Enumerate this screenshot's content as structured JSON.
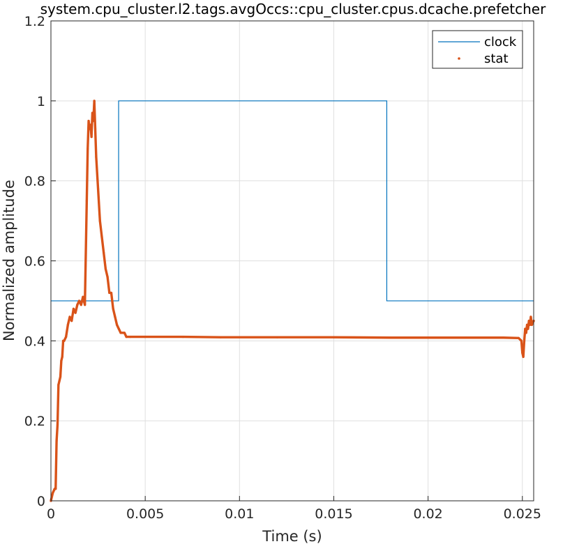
{
  "chart_data": {
    "type": "line",
    "title": "system.cpu_cluster.l2.tags.avgOccs::cpu_cluster.cpus.dcache.prefetcher",
    "xlabel": "Time (s)",
    "ylabel": "Normalized amplitude",
    "xlim": [
      0,
      0.0256
    ],
    "ylim": [
      0,
      1.2
    ],
    "xticks": [
      0,
      0.005,
      0.01,
      0.015,
      0.02,
      0.025
    ],
    "xtick_labels": [
      "0",
      "0.005",
      "0.01",
      "0.015",
      "0.02",
      "0.025"
    ],
    "yticks": [
      0,
      0.2,
      0.4,
      0.6,
      0.8,
      1.0,
      1.2
    ],
    "ytick_labels": [
      "0",
      "0.2",
      "0.4",
      "0.6",
      "0.8",
      "1",
      "1.2"
    ],
    "grid": true,
    "legend_position": "top-right",
    "series": [
      {
        "name": "clock",
        "color": "#0072bd",
        "style": "line",
        "x": [
          0,
          0.00359,
          0.00359,
          0.01781,
          0.01781,
          0.0256
        ],
        "y": [
          0.5,
          0.5,
          1.0,
          1.0,
          0.5,
          0.5
        ]
      },
      {
        "name": "stat",
        "color": "#d95319",
        "style": "dots",
        "x": [
          0,
          0.0001,
          0.0002,
          0.00025,
          0.0003,
          0.00035,
          0.0004,
          0.00045,
          0.0005,
          0.00055,
          0.0006,
          0.00065,
          0.0007,
          0.0008,
          0.0009,
          0.001,
          0.0011,
          0.0012,
          0.0013,
          0.0014,
          0.0015,
          0.0016,
          0.0017,
          0.0018,
          0.0019,
          0.00195,
          0.002,
          0.00205,
          0.0021,
          0.00215,
          0.0022,
          0.00225,
          0.0023,
          0.00235,
          0.0024,
          0.0025,
          0.0026,
          0.0027,
          0.0028,
          0.0029,
          0.003,
          0.0031,
          0.0032,
          0.0033,
          0.0034,
          0.0035,
          0.0036,
          0.0037,
          0.0038,
          0.0039,
          0.004,
          0.0042,
          0.005,
          0.007,
          0.009,
          0.012,
          0.015,
          0.018,
          0.02,
          0.022,
          0.024,
          0.0248,
          0.02495,
          0.025,
          0.02505,
          0.0251,
          0.02515,
          0.0252,
          0.02525,
          0.0253,
          0.02535,
          0.0254,
          0.02545,
          0.0255,
          0.0256
        ],
        "y": [
          0,
          0.02,
          0.03,
          0.03,
          0.15,
          0.19,
          0.29,
          0.3,
          0.31,
          0.35,
          0.36,
          0.4,
          0.4,
          0.41,
          0.44,
          0.46,
          0.45,
          0.48,
          0.47,
          0.49,
          0.5,
          0.49,
          0.51,
          0.49,
          0.75,
          0.88,
          0.95,
          0.93,
          0.94,
          0.91,
          0.97,
          0.95,
          1.0,
          0.93,
          0.86,
          0.78,
          0.7,
          0.66,
          0.62,
          0.58,
          0.56,
          0.52,
          0.52,
          0.48,
          0.46,
          0.44,
          0.43,
          0.42,
          0.42,
          0.42,
          0.41,
          0.41,
          0.41,
          0.41,
          0.409,
          0.409,
          0.409,
          0.408,
          0.408,
          0.408,
          0.408,
          0.407,
          0.4,
          0.37,
          0.36,
          0.4,
          0.43,
          0.42,
          0.44,
          0.43,
          0.45,
          0.44,
          0.46,
          0.44,
          0.45
        ]
      }
    ]
  }
}
